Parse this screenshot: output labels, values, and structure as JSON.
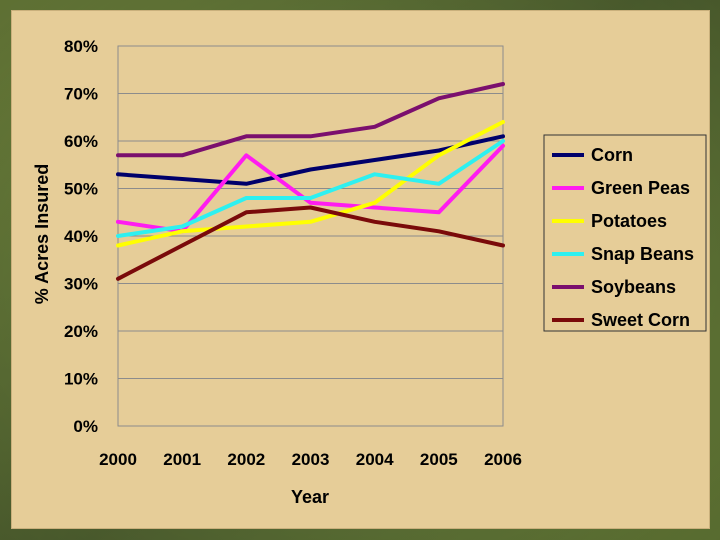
{
  "chart_data": {
    "type": "line",
    "title": "",
    "xlabel": "Year",
    "ylabel": "% Acres Insured",
    "ylim": [
      0,
      80
    ],
    "yticks": [
      "0%",
      "10%",
      "20%",
      "30%",
      "40%",
      "50%",
      "60%",
      "70%",
      "80%"
    ],
    "ytick_values": [
      0,
      10,
      20,
      30,
      40,
      50,
      60,
      70,
      80
    ],
    "categories": [
      "2000",
      "2001",
      "2002",
      "2003",
      "2004",
      "2005",
      "2006"
    ],
    "grid": true,
    "legend_position": "right",
    "series": [
      {
        "name": "Corn",
        "color": "#00006b",
        "values": [
          53,
          52,
          51,
          54,
          56,
          58,
          61
        ]
      },
      {
        "name": "Green Peas",
        "color": "#ff1cf0",
        "values": [
          43,
          41,
          57,
          47,
          46,
          45,
          59
        ]
      },
      {
        "name": "Potatoes",
        "color": "#ffff00",
        "values": [
          38,
          41,
          42,
          43,
          47,
          57,
          64
        ]
      },
      {
        "name": "Snap Beans",
        "color": "#2ef0f0",
        "values": [
          40,
          42,
          48,
          48,
          53,
          51,
          60
        ]
      },
      {
        "name": "Soybeans",
        "color": "#7b0f6e",
        "values": [
          57,
          57,
          61,
          61,
          63,
          69,
          72
        ]
      },
      {
        "name": "Sweet Corn",
        "color": "#7a0a0a",
        "values": [
          31,
          38,
          45,
          46,
          43,
          41,
          38
        ]
      }
    ]
  }
}
